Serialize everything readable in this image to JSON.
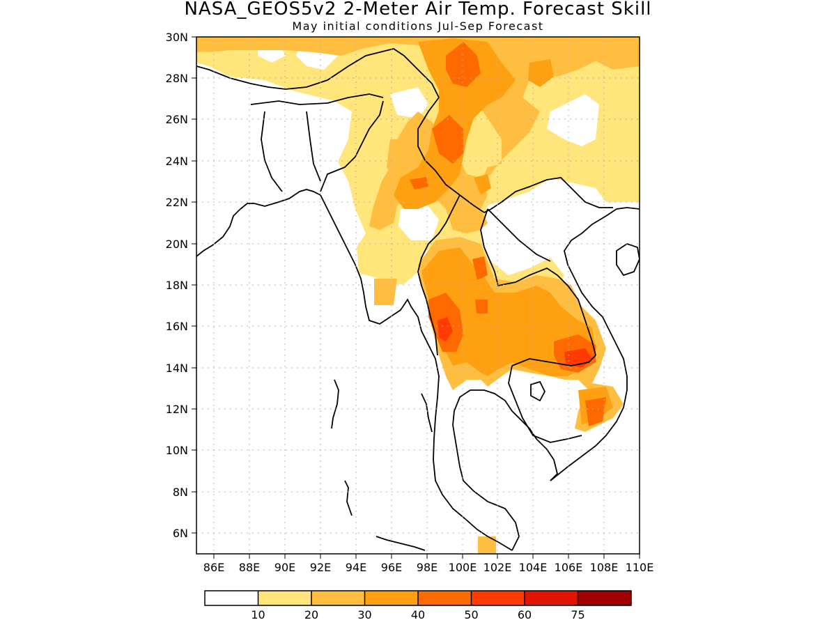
{
  "header": {
    "title": "NASA_GEOS5v2 2-Meter Air Temp. Forecast Skill",
    "subtitle": "May initial conditions  Jul-Sep Forecast"
  },
  "map": {
    "lat_labels": [
      "30N",
      "28N",
      "26N",
      "24N",
      "22N",
      "20N",
      "18N",
      "16N",
      "14N",
      "12N",
      "10N",
      "8N",
      "6N"
    ],
    "lon_labels": [
      "86E",
      "88E",
      "90E",
      "92E",
      "94E",
      "96E",
      "98E",
      "100E",
      "102E",
      "104E",
      "106E",
      "108E",
      "110E"
    ],
    "lat_range": [
      5,
      30
    ],
    "lon_range": [
      85,
      110
    ],
    "grid": "dotted"
  },
  "colorbar": {
    "labels": [
      "10",
      "20",
      "30",
      "40",
      "50",
      "60",
      "75"
    ],
    "colors": [
      "#ffffff",
      "#ffe57a",
      "#ffbe40",
      "#ffa010",
      "#ff6a00",
      "#ff3b00",
      "#e01400",
      "#a00000"
    ]
  }
}
